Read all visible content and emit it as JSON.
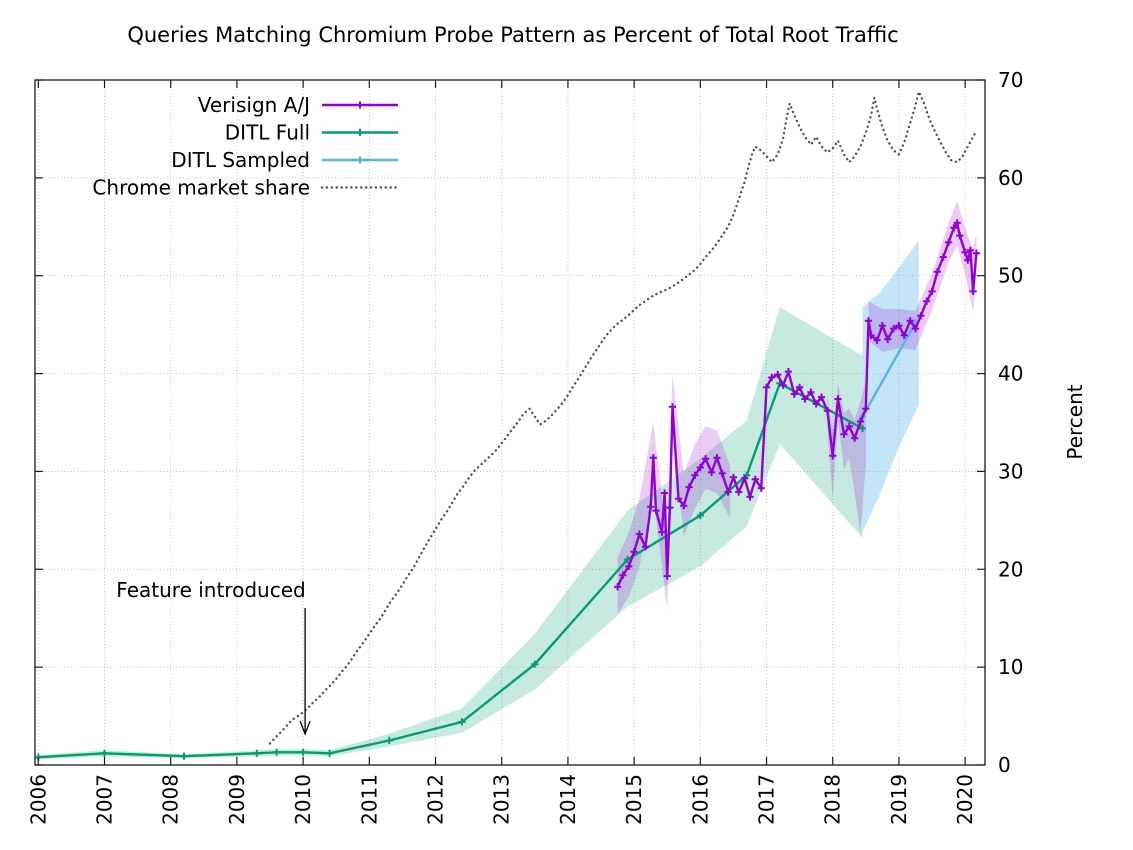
{
  "figure": {
    "background": "#ffffff"
  },
  "chart_data": {
    "type": "line",
    "title": "Queries Matching Chromium Probe Pattern as Percent of Total Root Traffic",
    "xlabel": "",
    "ylabel_right": "Percent",
    "xlim": [
      2005.95,
      2020.3
    ],
    "ylim": [
      0,
      70
    ],
    "xticks": [
      2006,
      2007,
      2008,
      2009,
      2010,
      2011,
      2012,
      2013,
      2014,
      2015,
      2016,
      2017,
      2018,
      2019,
      2020
    ],
    "yticks": [
      0,
      10,
      20,
      30,
      40,
      50,
      60,
      70
    ],
    "grid": true,
    "legend_position": "top-left",
    "annotation": {
      "text": "Feature introduced",
      "target_x": 2010.03
    },
    "series": [
      {
        "id": "verisign-aj",
        "name": "Verisign A/J",
        "color": "#9400d3",
        "marker": "plus",
        "band_opacity": 0.2,
        "x": [
          2014.75,
          2014.83,
          2014.92,
          2015.0,
          2015.08,
          2015.17,
          2015.25,
          2015.29,
          2015.33,
          2015.42,
          2015.46,
          2015.5,
          2015.54,
          2015.58,
          2015.67,
          2015.75,
          2015.83,
          2015.92,
          2016.0,
          2016.08,
          2016.17,
          2016.25,
          2016.33,
          2016.42,
          2016.5,
          2016.58,
          2016.67,
          2016.75,
          2016.83,
          2016.92,
          2017.0,
          2017.08,
          2017.17,
          2017.25,
          2017.33,
          2017.42,
          2017.5,
          2017.58,
          2017.67,
          2017.75,
          2017.83,
          2017.92,
          2018.0,
          2018.08,
          2018.17,
          2018.25,
          2018.33,
          2018.42,
          2018.5,
          2018.54,
          2018.58,
          2018.67,
          2018.75,
          2018.83,
          2018.92,
          2019.0,
          2019.08,
          2019.17,
          2019.25,
          2019.33,
          2019.42,
          2019.5,
          2019.58,
          2019.67,
          2019.75,
          2019.83,
          2019.88,
          2019.92,
          2020.0,
          2020.04,
          2020.08,
          2020.12,
          2020.17
        ],
        "y": [
          18.2,
          19.4,
          20.3,
          21.8,
          23.6,
          22.3,
          26.4,
          31.4,
          26.0,
          23.8,
          27.8,
          19.3,
          26.3,
          36.6,
          27.2,
          26.5,
          28.4,
          29.6,
          30.4,
          31.3,
          29.9,
          31.4,
          29.8,
          27.9,
          29.4,
          27.9,
          29.3,
          27.4,
          29.2,
          28.3,
          38.6,
          39.6,
          39.9,
          38.8,
          40.2,
          37.9,
          38.6,
          37.4,
          38.1,
          36.9,
          37.6,
          36.2,
          31.6,
          37.4,
          33.8,
          34.6,
          33.4,
          35.1,
          36.4,
          45.4,
          43.9,
          43.4,
          44.9,
          43.5,
          44.6,
          44.9,
          43.9,
          45.4,
          44.6,
          45.9,
          47.4,
          48.4,
          50.4,
          51.9,
          53.4,
          54.9,
          55.4,
          54.1,
          52.4,
          51.6,
          52.6,
          48.4,
          52.3
        ],
        "bands": [
          {
            "x": [
              2014.75,
              2014.92,
              2015.08,
              2015.29,
              2015.5,
              2015.58,
              2015.75,
              2015.92,
              2016.08,
              2016.25,
              2016.45
            ],
            "upper": [
              21.2,
              23.8,
              27.2,
              35.0,
              23.0,
              40.0,
              29.8,
              32.8,
              34.6,
              34.2,
              30.6
            ],
            "lower": [
              15.4,
              17.2,
              20.2,
              27.6,
              15.8,
              33.2,
              23.4,
              26.2,
              28.2,
              27.8,
              25.2
            ]
          },
          {
            "x": [
              2017.92,
              2018.0,
              2018.08,
              2018.17,
              2018.25,
              2018.33,
              2018.42,
              2018.5
            ],
            "upper": [
              37.8,
              34.2,
              38.9,
              36.0,
              36.4,
              35.3,
              37.2,
              39.2
            ],
            "lower": [
              34.2,
              27.4,
              35.2,
              30.2,
              31.4,
              27.8,
              23.6,
              30.8
            ]
          },
          {
            "x": [
              2018.54,
              2018.75,
              2019.0,
              2019.25,
              2019.5,
              2019.75,
              2019.88,
              2020.0,
              2020.12,
              2020.17
            ],
            "upper": [
              47.4,
              46.6,
              46.6,
              46.4,
              50.2,
              55.4,
              57.6,
              54.8,
              52.8,
              54.2
            ],
            "lower": [
              43.4,
              42.2,
              42.6,
              42.4,
              46.4,
              51.4,
              53.0,
              50.2,
              46.2,
              50.4
            ]
          }
        ]
      },
      {
        "id": "ditl-full",
        "name": "DITL Full",
        "color": "#009e73",
        "marker": "plus",
        "band_opacity": 0.22,
        "x": [
          2006.0,
          2007.0,
          2008.2,
          2009.3,
          2009.6,
          2010.0,
          2010.4,
          2011.3,
          2012.4,
          2013.5,
          2014.9,
          2016.0,
          2016.7,
          2017.2,
          2018.45
        ],
        "y": [
          0.8,
          1.2,
          0.9,
          1.2,
          1.3,
          1.3,
          1.2,
          2.5,
          4.4,
          10.3,
          21.0,
          25.5,
          29.6,
          39.0,
          34.4
        ],
        "bands": [
          {
            "x": [
              2006.0,
              2007.0,
              2008.2,
              2009.3,
              2009.6,
              2010.0,
              2010.4,
              2011.3,
              2012.4,
              2013.5,
              2014.9,
              2016.0,
              2016.7,
              2017.2,
              2018.45
            ],
            "upper": [
              1.0,
              1.5,
              1.1,
              1.5,
              1.6,
              1.6,
              1.5,
              3.2,
              5.8,
              13.4,
              26.0,
              31.3,
              35.2,
              46.8,
              41.8
            ],
            "lower": [
              0.6,
              0.9,
              0.7,
              0.9,
              1.0,
              1.0,
              0.9,
              1.9,
              3.3,
              7.7,
              16.2,
              20.3,
              24.4,
              32.8,
              23.2
            ]
          }
        ]
      },
      {
        "id": "ditl-sampled",
        "name": "DITL Sampled",
        "color": "#56b4e9",
        "marker": "plus",
        "band_opacity": 0.35,
        "x": [
          2018.45,
          2019.25
        ],
        "y": [
          35.6,
          45.2
        ],
        "bands": [
          {
            "x": [
              2018.45,
              2018.7,
              2019.0,
              2019.3
            ],
            "upper": [
              46.8,
              48.2,
              50.8,
              53.6
            ],
            "lower": [
              23.8,
              27.5,
              32.5,
              36.8
            ]
          }
        ]
      },
      {
        "id": "chrome-market-share",
        "name": "Chrome market share",
        "color": "#4d4d4d",
        "style": "dotted",
        "x": [
          2009.5,
          2009.58,
          2009.67,
          2009.75,
          2009.83,
          2009.92,
          2010.0,
          2010.08,
          2010.17,
          2010.25,
          2010.33,
          2010.42,
          2010.5,
          2010.58,
          2010.67,
          2010.75,
          2010.83,
          2010.92,
          2011.0,
          2011.08,
          2011.17,
          2011.25,
          2011.33,
          2011.42,
          2011.5,
          2011.58,
          2011.67,
          2011.75,
          2011.83,
          2011.92,
          2012.0,
          2012.08,
          2012.17,
          2012.25,
          2012.33,
          2012.42,
          2012.5,
          2012.58,
          2012.67,
          2012.75,
          2012.83,
          2012.92,
          2013.0,
          2013.08,
          2013.17,
          2013.25,
          2013.33,
          2013.42,
          2013.5,
          2013.58,
          2013.67,
          2013.75,
          2013.83,
          2013.92,
          2014.0,
          2014.08,
          2014.17,
          2014.25,
          2014.33,
          2014.42,
          2014.5,
          2014.58,
          2014.67,
          2014.75,
          2014.83,
          2014.92,
          2015.0,
          2015.08,
          2015.17,
          2015.25,
          2015.33,
          2015.42,
          2015.5,
          2015.58,
          2015.67,
          2015.75,
          2015.83,
          2015.92,
          2016.0,
          2016.08,
          2016.17,
          2016.25,
          2016.33,
          2016.42,
          2016.5,
          2016.58,
          2016.67,
          2016.72,
          2016.78,
          2016.83,
          2016.92,
          2017.0,
          2017.08,
          2017.17,
          2017.25,
          2017.3,
          2017.35,
          2017.42,
          2017.5,
          2017.58,
          2017.67,
          2017.75,
          2017.83,
          2017.92,
          2018.0,
          2018.08,
          2018.17,
          2018.25,
          2018.33,
          2018.42,
          2018.5,
          2018.58,
          2018.63,
          2018.67,
          2018.75,
          2018.83,
          2018.92,
          2019.0,
          2019.08,
          2019.17,
          2019.25,
          2019.3,
          2019.38,
          2019.46,
          2019.54,
          2019.63,
          2019.71,
          2019.79,
          2019.88,
          2019.96,
          2020.04,
          2020.12,
          2020.17
        ],
        "y": [
          2.2,
          2.8,
          3.4,
          4.0,
          4.6,
          5.0,
          5.4,
          5.9,
          6.5,
          7.0,
          7.6,
          8.2,
          8.8,
          9.5,
          10.2,
          11.0,
          11.8,
          12.6,
          13.4,
          14.2,
          15.0,
          15.9,
          16.8,
          17.6,
          18.4,
          19.3,
          20.2,
          21.2,
          22.2,
          23.2,
          24.1,
          25.0,
          25.9,
          26.8,
          27.7,
          28.5,
          29.3,
          30.0,
          30.6,
          31.1,
          31.6,
          32.2,
          32.9,
          33.6,
          34.4,
          35.1,
          35.9,
          36.4,
          35.6,
          34.8,
          35.2,
          35.7,
          36.3,
          37.0,
          37.8,
          38.7,
          39.6,
          40.5,
          41.4,
          42.3,
          43.1,
          43.9,
          44.6,
          45.1,
          45.5,
          46.0,
          46.5,
          47.0,
          47.4,
          47.8,
          48.1,
          48.4,
          48.6,
          48.9,
          49.3,
          49.7,
          50.1,
          50.6,
          51.2,
          51.9,
          52.6,
          53.3,
          54.1,
          55.0,
          56.2,
          57.8,
          59.6,
          61.0,
          62.4,
          63.2,
          62.8,
          62.2,
          61.6,
          62.4,
          64.0,
          66.0,
          67.6,
          66.4,
          65.2,
          64.2,
          63.4,
          64.2,
          63.2,
          62.6,
          63.0,
          63.8,
          62.4,
          61.6,
          62.2,
          63.2,
          64.6,
          66.4,
          68.2,
          67.0,
          65.2,
          63.8,
          62.8,
          62.4,
          63.6,
          65.6,
          67.4,
          68.8,
          67.6,
          66.0,
          64.8,
          63.6,
          62.6,
          61.8,
          61.6,
          62.2,
          63.2,
          64.2,
          64.8
        ]
      }
    ]
  }
}
